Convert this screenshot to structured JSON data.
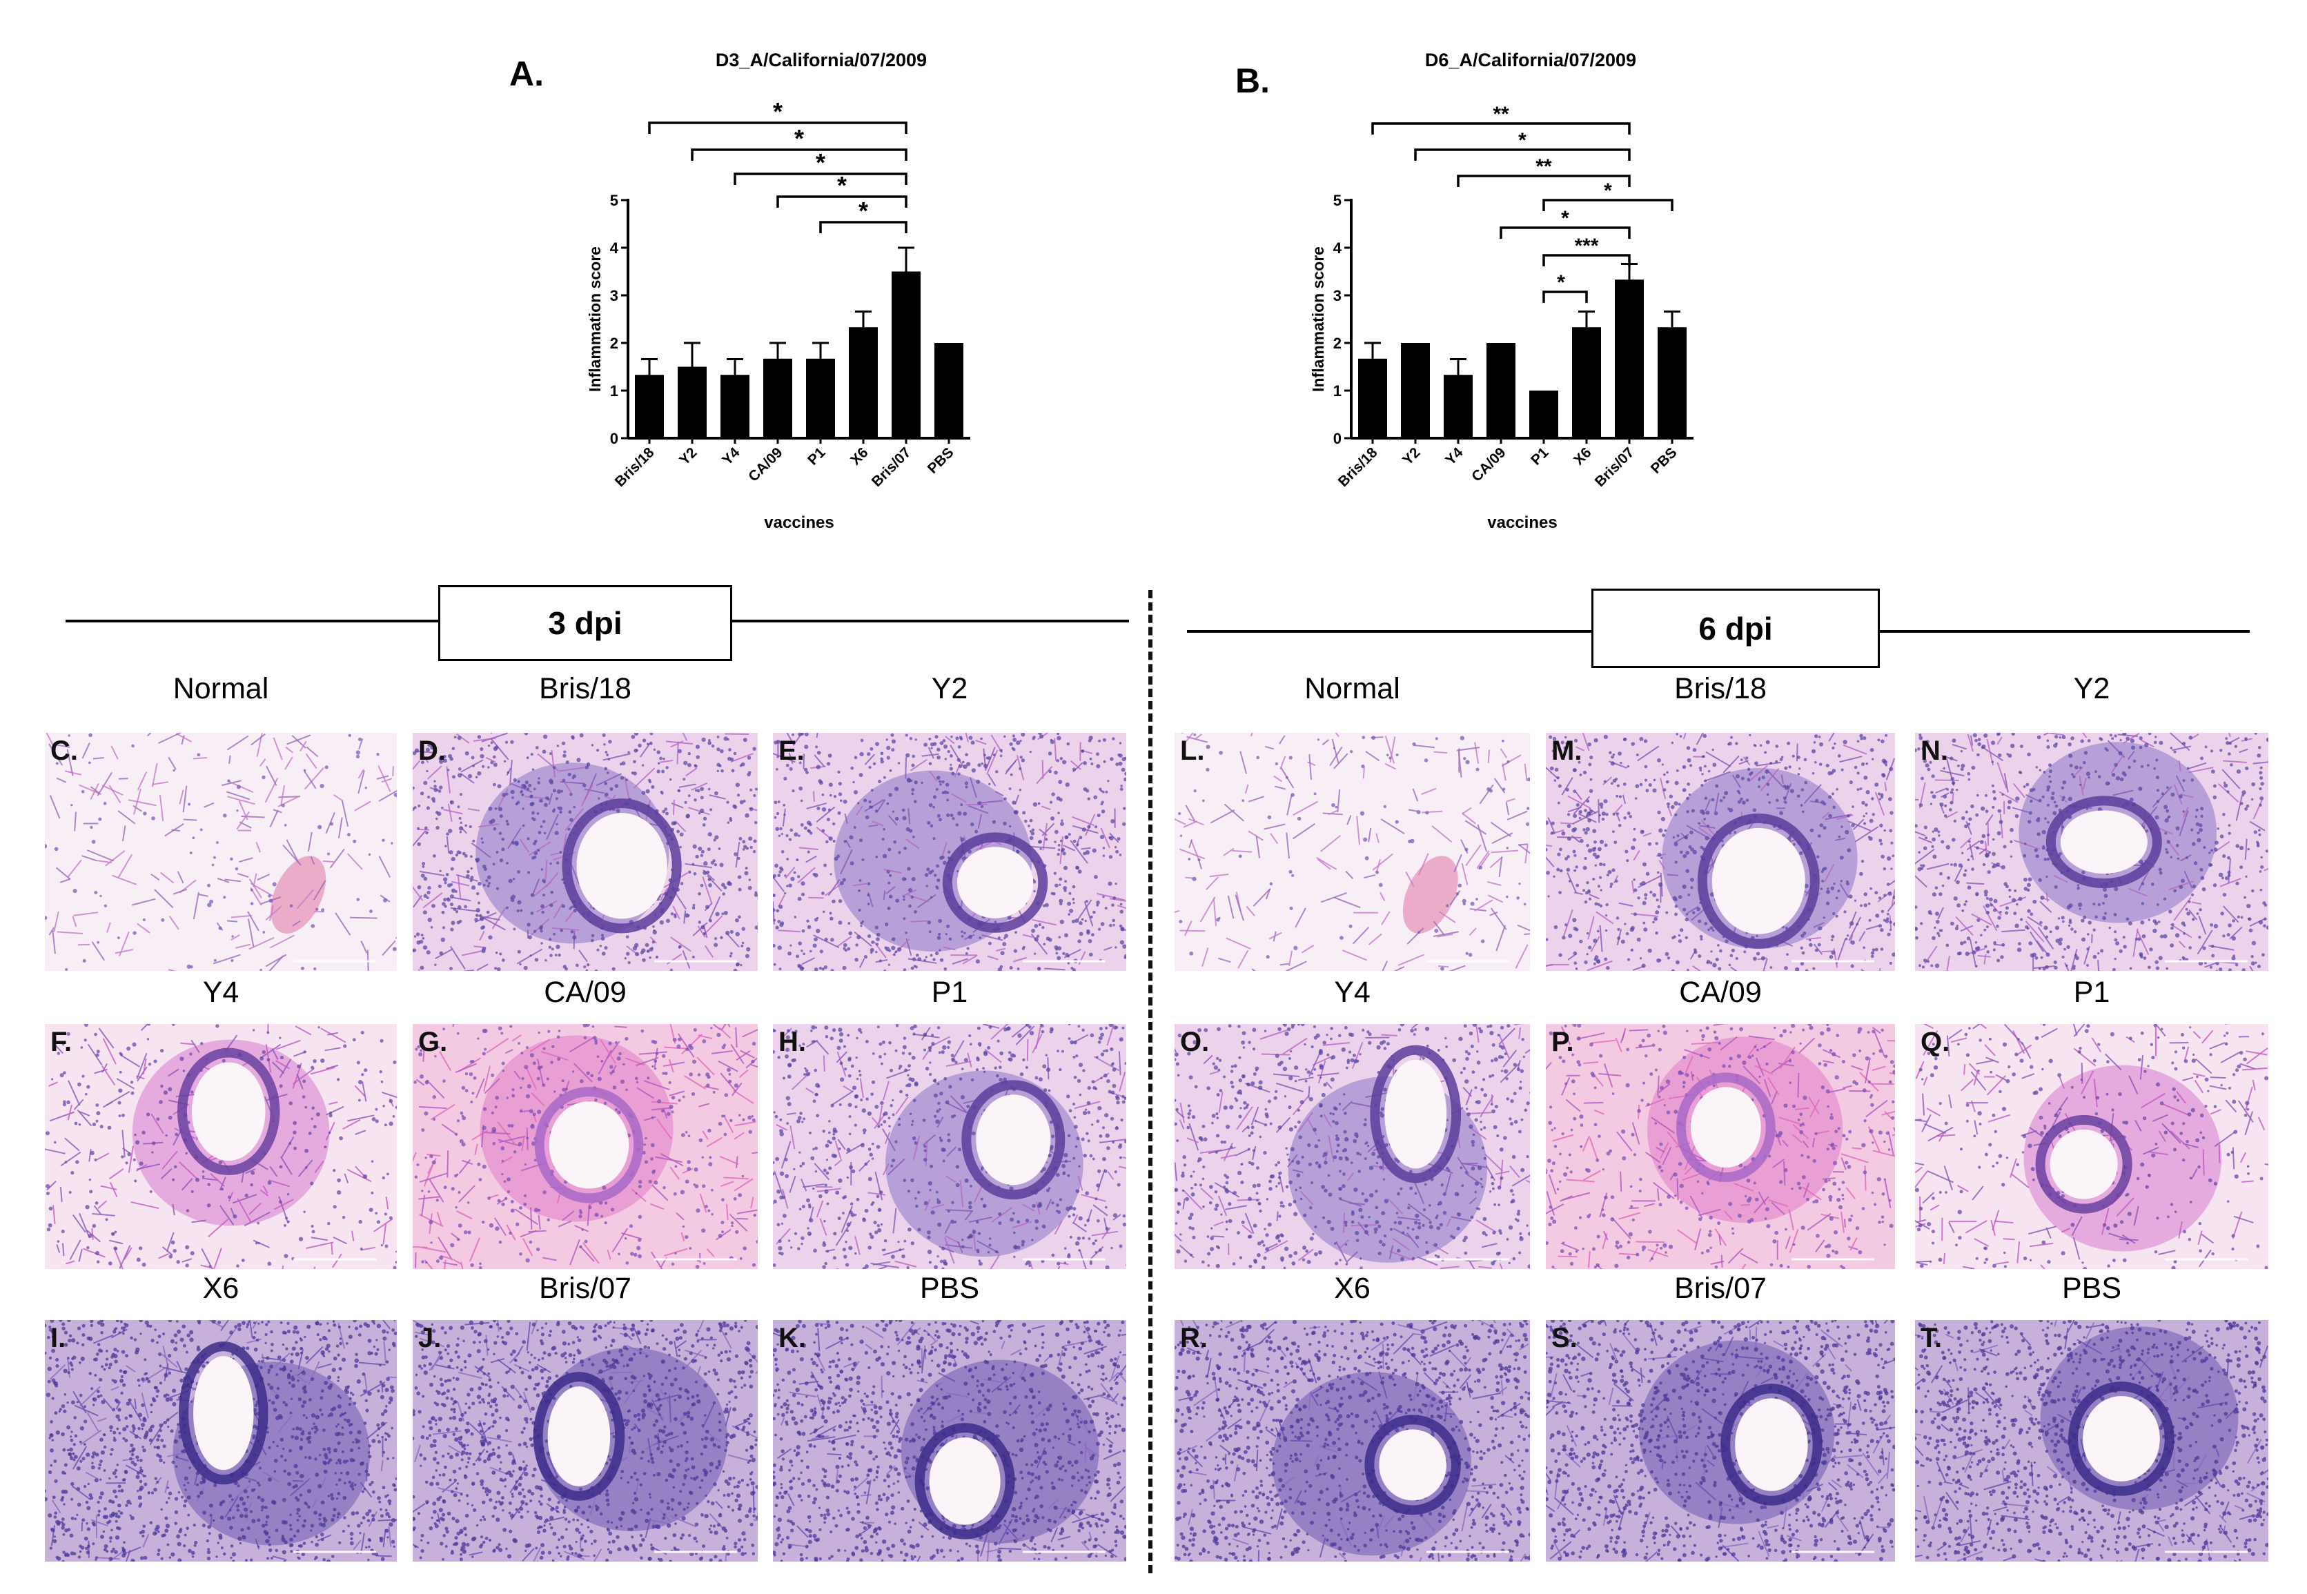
{
  "charts": [
    {
      "letter": "A.",
      "chart_data": {
        "type": "bar",
        "title": "D3_A/California/07/2009",
        "xlabel": "vaccines",
        "ylabel": "Inflammation score",
        "ylim": [
          0,
          5
        ],
        "yticks": [
          "0",
          "1",
          "2",
          "3",
          "4",
          "5"
        ],
        "categories": [
          "Bris/18",
          "Y2",
          "Y4",
          "CA/09",
          "P1",
          "X6",
          "Bris/07",
          "PBS"
        ],
        "values": [
          1.33,
          1.5,
          1.33,
          1.67,
          1.67,
          2.33,
          3.5,
          2.0
        ],
        "errors": [
          0.33,
          0.5,
          0.33,
          0.33,
          0.33,
          0.33,
          0.5,
          0
        ],
        "bar_color": "#000000",
        "grid": false,
        "annotations": [
          {
            "from": "Bris/18",
            "to": "Bris/07",
            "label": "*"
          },
          {
            "from": "Y2",
            "to": "Bris/07",
            "label": "*"
          },
          {
            "from": "Y4",
            "to": "Bris/07",
            "label": "*"
          },
          {
            "from": "CA/09",
            "to": "Bris/07",
            "label": "*"
          },
          {
            "from": "P1",
            "to": "Bris/07",
            "label": "*"
          }
        ]
      }
    },
    {
      "letter": "B.",
      "chart_data": {
        "type": "bar",
        "title": "D6_A/California/07/2009",
        "xlabel": "vaccines",
        "ylabel": "Inflammation score",
        "ylim": [
          0,
          5
        ],
        "yticks": [
          "0",
          "1",
          "2",
          "3",
          "4",
          "5"
        ],
        "categories": [
          "Bris/18",
          "Y2",
          "Y4",
          "CA/09",
          "P1",
          "X6",
          "Bris/07",
          "PBS"
        ],
        "values": [
          1.67,
          2.0,
          1.33,
          2.0,
          1.0,
          2.33,
          3.33,
          2.33
        ],
        "errors": [
          0.33,
          0,
          0.33,
          0,
          0,
          0.33,
          0.33,
          0.33
        ],
        "bar_color": "#000000",
        "grid": false,
        "annotations": [
          {
            "from": "Bris/18",
            "to": "Bris/07",
            "label": "**"
          },
          {
            "from": "Y2",
            "to": "Bris/07",
            "label": "*"
          },
          {
            "from": "Y4",
            "to": "Bris/07",
            "label": "**"
          },
          {
            "from": "P1",
            "to": "PBS",
            "label": "*"
          },
          {
            "from": "CA/09",
            "to": "Bris/07",
            "label": "*"
          },
          {
            "from": "P1",
            "to": "Bris/07",
            "label": "***"
          },
          {
            "from": "P1",
            "to": "X6",
            "label": "*"
          }
        ]
      }
    }
  ],
  "sections": [
    {
      "label": "3 dpi"
    },
    {
      "label": "6 dpi"
    }
  ],
  "tiles": [
    {
      "letter": "C.",
      "name": "Normal",
      "kind": "normal"
    },
    {
      "letter": "D.",
      "name": "Bris/18",
      "kind": "medium"
    },
    {
      "letter": "E.",
      "name": "Y2",
      "kind": "medium"
    },
    {
      "letter": "F.",
      "name": "Y4",
      "kind": "light"
    },
    {
      "letter": "G.",
      "name": "CA/09",
      "kind": "pink"
    },
    {
      "letter": "H.",
      "name": "P1",
      "kind": "medium"
    },
    {
      "letter": "I.",
      "name": "X6",
      "kind": "dense"
    },
    {
      "letter": "J.",
      "name": "Bris/07",
      "kind": "dense"
    },
    {
      "letter": "K.",
      "name": "PBS",
      "kind": "dense"
    },
    {
      "letter": "L.",
      "name": "Normal",
      "kind": "normal"
    },
    {
      "letter": "M.",
      "name": "Bris/18",
      "kind": "medium"
    },
    {
      "letter": "N.",
      "name": "Y2",
      "kind": "medium"
    },
    {
      "letter": "O.",
      "name": "Y4",
      "kind": "medium"
    },
    {
      "letter": "P.",
      "name": "CA/09",
      "kind": "pink"
    },
    {
      "letter": "Q.",
      "name": "P1",
      "kind": "light"
    },
    {
      "letter": "R.",
      "name": "X6",
      "kind": "dense"
    },
    {
      "letter": "S.",
      "name": "Bris/07",
      "kind": "dense"
    },
    {
      "letter": "T.",
      "name": "PBS",
      "kind": "dense"
    }
  ]
}
